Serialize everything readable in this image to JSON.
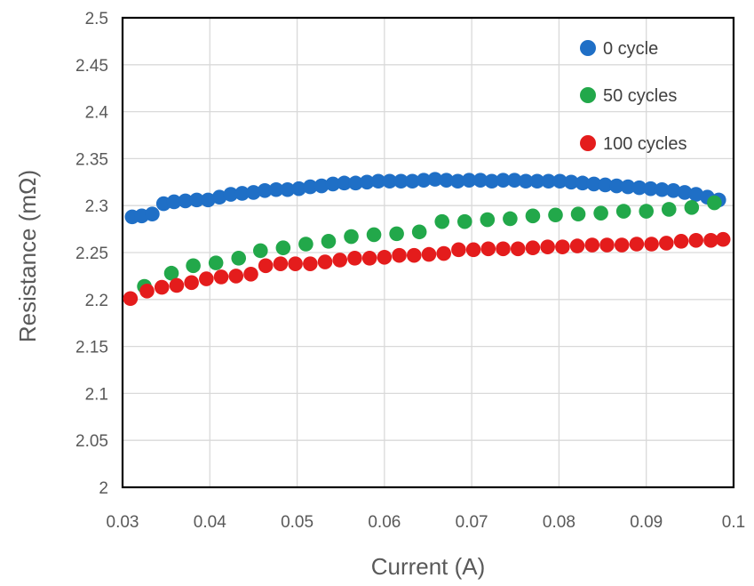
{
  "chart_data": {
    "type": "scatter",
    "title": "",
    "xlabel": "Current (A)",
    "ylabel": "Resistance (mΩ)",
    "xlim": [
      0.03,
      0.1
    ],
    "ylim": [
      2,
      2.5
    ],
    "x_ticks": [
      "0.03",
      "0.04",
      "0.05",
      "0.06",
      "0.07",
      "0.08",
      "0.09",
      "0.1"
    ],
    "y_ticks": [
      "2",
      "2.05",
      "2.1",
      "2.15",
      "2.2",
      "2.25",
      "2.3",
      "2.35",
      "2.4",
      "2.45",
      "2.5"
    ],
    "grid": true,
    "legend_position": "top-right",
    "series": [
      {
        "name": "0 cycle",
        "color": "#1f6fc6",
        "x": [
          0.0311,
          0.0322,
          0.0334,
          0.0347,
          0.0359,
          0.0372,
          0.0385,
          0.0398,
          0.0411,
          0.0424,
          0.0437,
          0.045,
          0.0463,
          0.0476,
          0.0489,
          0.0502,
          0.0515,
          0.0528,
          0.0541,
          0.0554,
          0.0567,
          0.058,
          0.0593,
          0.0606,
          0.0619,
          0.0632,
          0.0645,
          0.0658,
          0.0671,
          0.0684,
          0.0697,
          0.071,
          0.0723,
          0.0736,
          0.0749,
          0.0762,
          0.0775,
          0.0788,
          0.0801,
          0.0814,
          0.0827,
          0.084,
          0.0853,
          0.0866,
          0.0879,
          0.0892,
          0.0905,
          0.0918,
          0.0931,
          0.0944,
          0.0957,
          0.097,
          0.0983
        ],
        "y": [
          2.288,
          2.289,
          2.291,
          2.302,
          2.304,
          2.305,
          2.306,
          2.306,
          2.309,
          2.312,
          2.313,
          2.314,
          2.316,
          2.317,
          2.317,
          2.318,
          2.32,
          2.321,
          2.323,
          2.324,
          2.324,
          2.325,
          2.326,
          2.326,
          2.326,
          2.326,
          2.327,
          2.328,
          2.327,
          2.326,
          2.327,
          2.327,
          2.326,
          2.327,
          2.327,
          2.326,
          2.326,
          2.326,
          2.326,
          2.325,
          2.324,
          2.323,
          2.322,
          2.321,
          2.32,
          2.319,
          2.318,
          2.317,
          2.316,
          2.314,
          2.312,
          2.309,
          2.306
        ]
      },
      {
        "name": "50 cycles",
        "color": "#22a84a",
        "x": [
          0.0325,
          0.0356,
          0.0381,
          0.0407,
          0.0433,
          0.0458,
          0.0484,
          0.051,
          0.0536,
          0.0562,
          0.0588,
          0.0614,
          0.064,
          0.0666,
          0.0692,
          0.0718,
          0.0744,
          0.077,
          0.0796,
          0.0822,
          0.0848,
          0.0874,
          0.09,
          0.0926,
          0.0952,
          0.0978
        ],
        "y": [
          2.214,
          2.228,
          2.236,
          2.239,
          2.244,
          2.252,
          2.255,
          2.259,
          2.262,
          2.267,
          2.269,
          2.27,
          2.272,
          2.283,
          2.283,
          2.285,
          2.286,
          2.289,
          2.29,
          2.291,
          2.292,
          2.294,
          2.294,
          2.296,
          2.298,
          2.303
        ]
      },
      {
        "name": "100 cycles",
        "color": "#e41c1c",
        "x": [
          0.0309,
          0.0328,
          0.0345,
          0.0362,
          0.0379,
          0.0396,
          0.0413,
          0.043,
          0.0447,
          0.0464,
          0.0481,
          0.0498,
          0.0515,
          0.0532,
          0.0549,
          0.0566,
          0.0583,
          0.06,
          0.0617,
          0.0634,
          0.0651,
          0.0668,
          0.0685,
          0.0702,
          0.0719,
          0.0736,
          0.0753,
          0.077,
          0.0787,
          0.0804,
          0.0821,
          0.0838,
          0.0855,
          0.0872,
          0.0889,
          0.0906,
          0.0923,
          0.094,
          0.0957,
          0.0974,
          0.0988
        ],
        "y": [
          2.201,
          2.209,
          2.213,
          2.215,
          2.218,
          2.222,
          2.224,
          2.225,
          2.227,
          2.236,
          2.238,
          2.238,
          2.238,
          2.24,
          2.242,
          2.244,
          2.244,
          2.245,
          2.247,
          2.247,
          2.248,
          2.249,
          2.253,
          2.253,
          2.254,
          2.254,
          2.254,
          2.255,
          2.256,
          2.256,
          2.257,
          2.258,
          2.258,
          2.258,
          2.259,
          2.259,
          2.26,
          2.262,
          2.263,
          2.263,
          2.264
        ]
      }
    ]
  }
}
